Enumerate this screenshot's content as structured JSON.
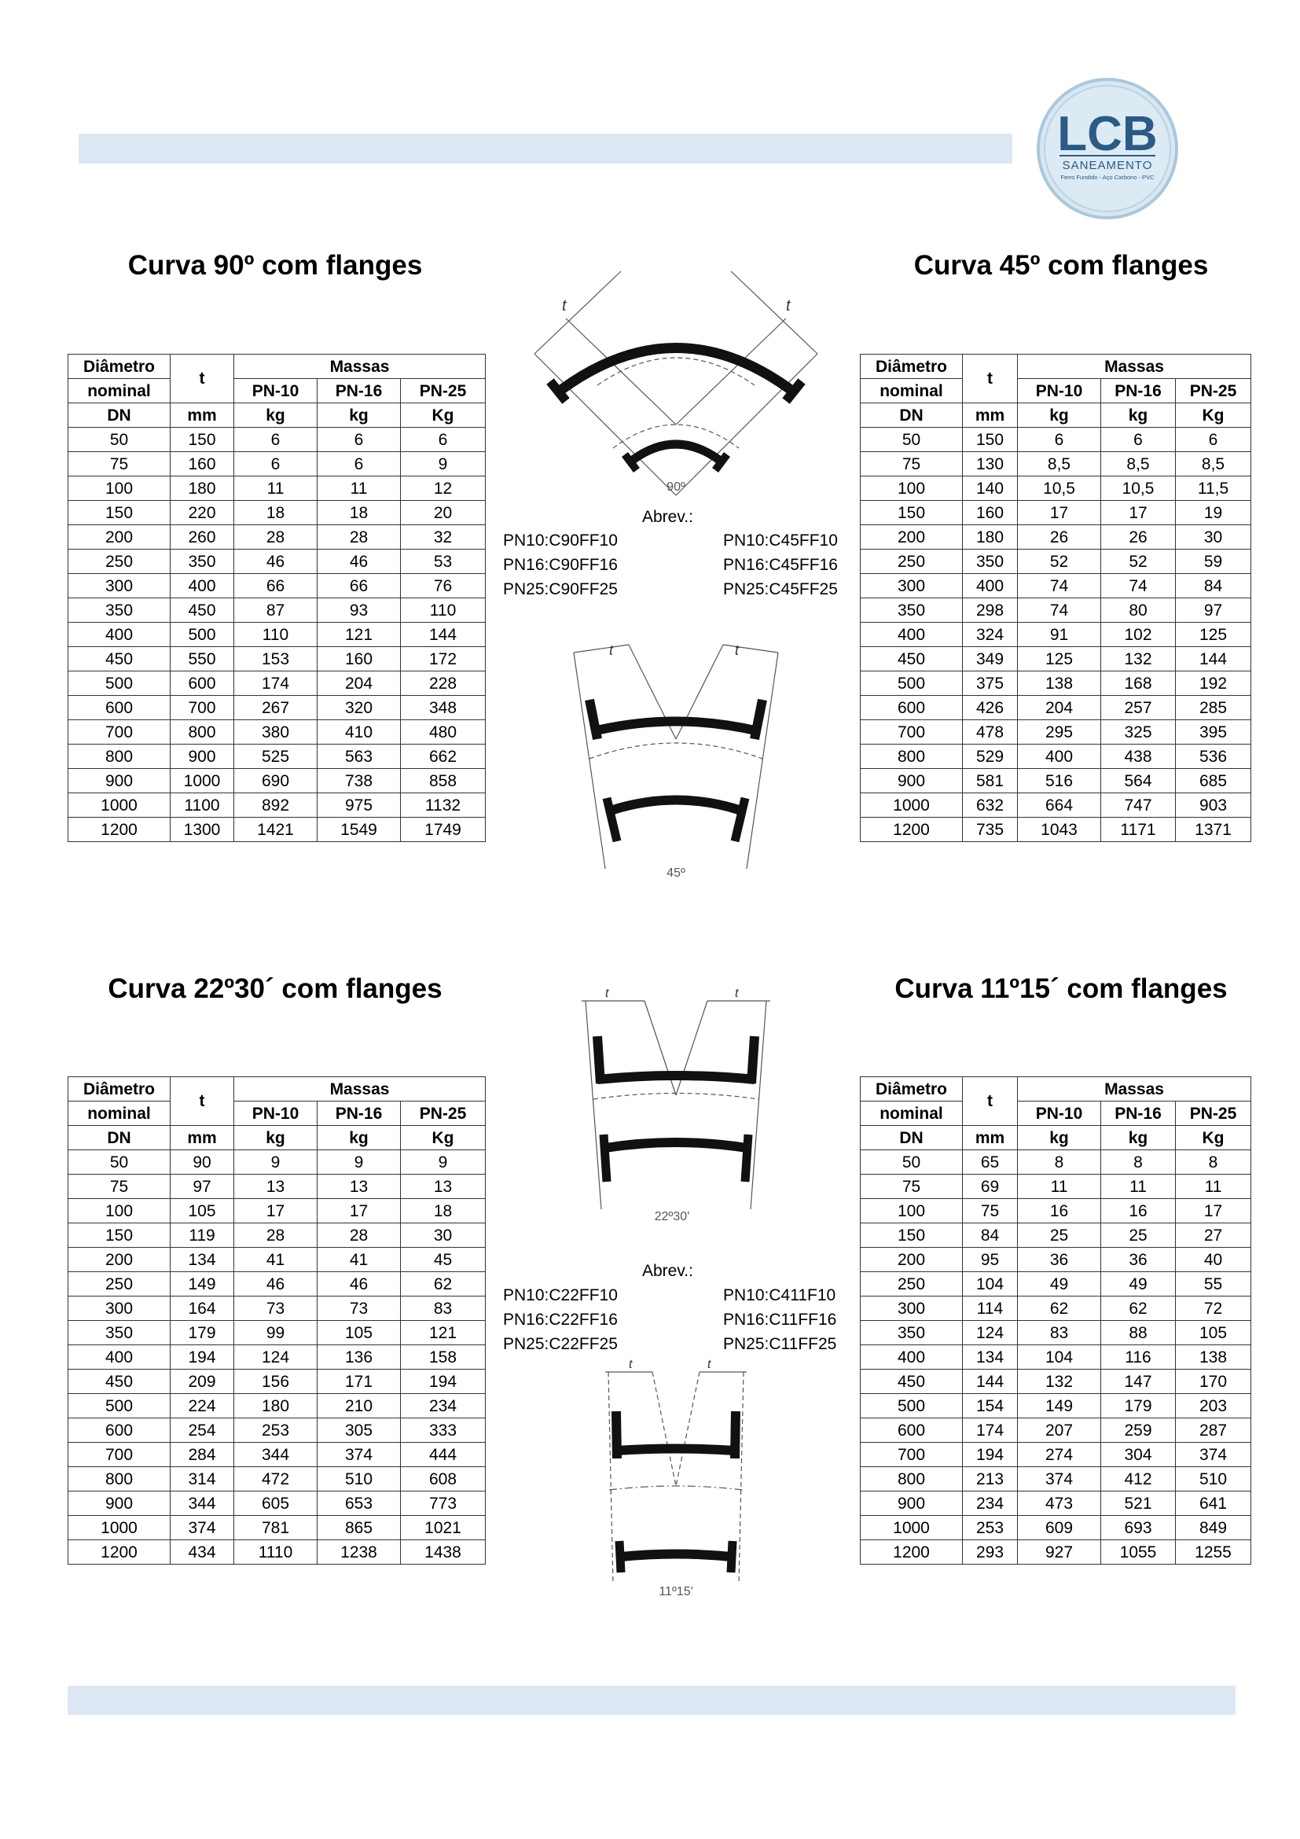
{
  "brand": {
    "name": "LCB",
    "subtitle": "SANEAMENTO",
    "tagline": "Ferro Fundido - Aço Carbono - PVC",
    "color": "#2c5a86",
    "ring": "#a9c8dc"
  },
  "header_band_color": "#dde7f4",
  "sections": [
    {
      "title": "Curva 90º com flanges",
      "headers": {
        "dn1": "Diâmetro",
        "dn2": "nominal",
        "dn3": "DN",
        "t": "t",
        "mass": "Massas",
        "pn10": "PN-10",
        "pn16": "PN-16",
        "pn25": "PN-25",
        "u_t": "mm",
        "u_pn10": "kg",
        "u_pn16": "kg",
        "u_pn25": "Kg"
      },
      "rows": [
        [
          "50",
          "150",
          "6",
          "6",
          "6"
        ],
        [
          "75",
          "160",
          "6",
          "6",
          "9"
        ],
        [
          "100",
          "180",
          "11",
          "11",
          "12"
        ],
        [
          "150",
          "220",
          "18",
          "18",
          "20"
        ],
        [
          "200",
          "260",
          "28",
          "28",
          "32"
        ],
        [
          "250",
          "350",
          "46",
          "46",
          "53"
        ],
        [
          "300",
          "400",
          "66",
          "66",
          "76"
        ],
        [
          "350",
          "450",
          "87",
          "93",
          "110"
        ],
        [
          "400",
          "500",
          "110",
          "121",
          "144"
        ],
        [
          "450",
          "550",
          "153",
          "160",
          "172"
        ],
        [
          "500",
          "600",
          "174",
          "204",
          "228"
        ],
        [
          "600",
          "700",
          "267",
          "320",
          "348"
        ],
        [
          "700",
          "800",
          "380",
          "410",
          "480"
        ],
        [
          "800",
          "900",
          "525",
          "563",
          "662"
        ],
        [
          "900",
          "1000",
          "690",
          "738",
          "858"
        ],
        [
          "1000",
          "1100",
          "892",
          "975",
          "1132"
        ],
        [
          "1200",
          "1300",
          "1421",
          "1549",
          "1749"
        ]
      ]
    },
    {
      "title": "Curva 45º com flanges",
      "headers": {
        "dn1": "Diâmetro",
        "dn2": "nominal",
        "dn3": "DN",
        "t": "t",
        "mass": "Massas",
        "pn10": "PN-10",
        "pn16": "PN-16",
        "pn25": "PN-25",
        "u_t": "mm",
        "u_pn10": "kg",
        "u_pn16": "kg",
        "u_pn25": "Kg"
      },
      "rows": [
        [
          "50",
          "150",
          "6",
          "6",
          "6"
        ],
        [
          "75",
          "130",
          "8,5",
          "8,5",
          "8,5"
        ],
        [
          "100",
          "140",
          "10,5",
          "10,5",
          "11,5"
        ],
        [
          "150",
          "160",
          "17",
          "17",
          "19"
        ],
        [
          "200",
          "180",
          "26",
          "26",
          "30"
        ],
        [
          "250",
          "350",
          "52",
          "52",
          "59"
        ],
        [
          "300",
          "400",
          "74",
          "74",
          "84"
        ],
        [
          "350",
          "298",
          "74",
          "80",
          "97"
        ],
        [
          "400",
          "324",
          "91",
          "102",
          "125"
        ],
        [
          "450",
          "349",
          "125",
          "132",
          "144"
        ],
        [
          "500",
          "375",
          "138",
          "168",
          "192"
        ],
        [
          "600",
          "426",
          "204",
          "257",
          "285"
        ],
        [
          "700",
          "478",
          "295",
          "325",
          "395"
        ],
        [
          "800",
          "529",
          "400",
          "438",
          "536"
        ],
        [
          "900",
          "581",
          "516",
          "564",
          "685"
        ],
        [
          "1000",
          "632",
          "664",
          "747",
          "903"
        ],
        [
          "1200",
          "735",
          "1043",
          "1171",
          "1371"
        ]
      ]
    },
    {
      "title": "Curva 22º30´ com flanges",
      "headers": {
        "dn1": "Diâmetro",
        "dn2": "nominal",
        "dn3": "DN",
        "t": "t",
        "mass": "Massas",
        "pn10": "PN-10",
        "pn16": "PN-16",
        "pn25": "PN-25",
        "u_t": "mm",
        "u_pn10": "kg",
        "u_pn16": "kg",
        "u_pn25": "Kg"
      },
      "rows": [
        [
          "50",
          "90",
          "9",
          "9",
          "9"
        ],
        [
          "75",
          "97",
          "13",
          "13",
          "13"
        ],
        [
          "100",
          "105",
          "17",
          "17",
          "18"
        ],
        [
          "150",
          "119",
          "28",
          "28",
          "30"
        ],
        [
          "200",
          "134",
          "41",
          "41",
          "45"
        ],
        [
          "250",
          "149",
          "46",
          "46",
          "62"
        ],
        [
          "300",
          "164",
          "73",
          "73",
          "83"
        ],
        [
          "350",
          "179",
          "99",
          "105",
          "121"
        ],
        [
          "400",
          "194",
          "124",
          "136",
          "158"
        ],
        [
          "450",
          "209",
          "156",
          "171",
          "194"
        ],
        [
          "500",
          "224",
          "180",
          "210",
          "234"
        ],
        [
          "600",
          "254",
          "253",
          "305",
          "333"
        ],
        [
          "700",
          "284",
          "344",
          "374",
          "444"
        ],
        [
          "800",
          "314",
          "472",
          "510",
          "608"
        ],
        [
          "900",
          "344",
          "605",
          "653",
          "773"
        ],
        [
          "1000",
          "374",
          "781",
          "865",
          "1021"
        ],
        [
          "1200",
          "434",
          "1110",
          "1238",
          "1438"
        ]
      ]
    },
    {
      "title": "Curva 11º15´ com flanges",
      "headers": {
        "dn1": "Diâmetro",
        "dn2": "nominal",
        "dn3": "DN",
        "t": "t",
        "mass": "Massas",
        "pn10": "PN-10",
        "pn16": "PN-16",
        "pn25": "PN-25",
        "u_t": "mm",
        "u_pn10": "kg",
        "u_pn16": "kg",
        "u_pn25": "Kg"
      },
      "rows": [
        [
          "50",
          "65",
          "8",
          "8",
          "8"
        ],
        [
          "75",
          "69",
          "11",
          "11",
          "11"
        ],
        [
          "100",
          "75",
          "16",
          "16",
          "17"
        ],
        [
          "150",
          "84",
          "25",
          "25",
          "27"
        ],
        [
          "200",
          "95",
          "36",
          "36",
          "40"
        ],
        [
          "250",
          "104",
          "49",
          "49",
          "55"
        ],
        [
          "300",
          "114",
          "62",
          "62",
          "72"
        ],
        [
          "350",
          "124",
          "83",
          "88",
          "105"
        ],
        [
          "400",
          "134",
          "104",
          "116",
          "138"
        ],
        [
          "450",
          "144",
          "132",
          "147",
          "170"
        ],
        [
          "500",
          "154",
          "149",
          "179",
          "203"
        ],
        [
          "600",
          "174",
          "207",
          "259",
          "287"
        ],
        [
          "700",
          "194",
          "274",
          "304",
          "374"
        ],
        [
          "800",
          "213",
          "374",
          "412",
          "510"
        ],
        [
          "900",
          "234",
          "473",
          "521",
          "641"
        ],
        [
          "1000",
          "253",
          "609",
          "693",
          "849"
        ],
        [
          "1200",
          "293",
          "927",
          "1055",
          "1255"
        ]
      ]
    }
  ],
  "abbrev_top": {
    "label": "Abrev.:",
    "left": [
      "PN10:C90FF10",
      "PN16:C90FF16",
      "PN25:C90FF25"
    ],
    "right": [
      "PN10:C45FF10",
      "PN16:C45FF16",
      "PN25:C45FF25"
    ]
  },
  "abbrev_bottom": {
    "label": "Abrev.:",
    "left": [
      "PN10:C22FF10",
      "PN16:C22FF16",
      "PN25:C22FF25"
    ],
    "right": [
      "PN10:C411F10",
      "PN16:C11FF16",
      "PN25:C11FF25"
    ]
  },
  "diagrams": {
    "d90": {
      "t_left": "t",
      "t_right": "t",
      "angle": "90º"
    },
    "d45": {
      "t_left": "t",
      "t_right": "t",
      "angle": "45º"
    },
    "d22": {
      "t_left": "t",
      "t_right": "t",
      "angle": "22º30'"
    },
    "d11": {
      "t_left": "t",
      "t_right": "t",
      "angle": "11º15'"
    }
  }
}
